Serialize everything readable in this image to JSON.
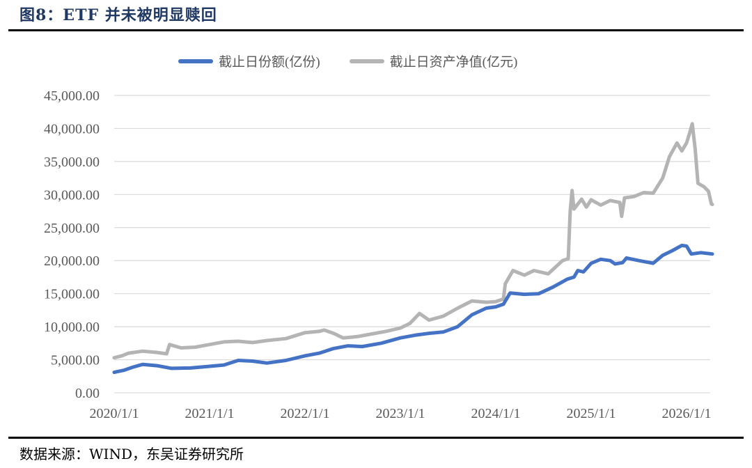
{
  "header": {
    "title": "图8：ETF 并未被明显赎回"
  },
  "footer": {
    "source": "数据来源：WIND，东吴证券研究所"
  },
  "legend": [
    {
      "label": "截止日份额(亿份)",
      "color": "#4472c4"
    },
    {
      "label": "截止日资产净值(亿元)",
      "color": "#b4b4b4"
    }
  ],
  "chart_data": {
    "type": "line",
    "title": "ETF 并未被明显赎回",
    "xlabel": "",
    "ylabel": "",
    "ylim": [
      0,
      45000
    ],
    "yticks": [
      "0.00",
      "5,000.00",
      "10,000.00",
      "15,000.00",
      "20,000.00",
      "25,000.00",
      "30,000.00",
      "35,000.00",
      "40,000.00",
      "45,000.00"
    ],
    "xticks": [
      "2020/1/1",
      "2021/1/1",
      "2022/1/1",
      "2023/1/1",
      "2024/1/1",
      "2025/1/1",
      "2026/1/1"
    ],
    "grid": true,
    "legend_position": "top",
    "series": [
      {
        "name": "截止日份额(亿份)",
        "color": "#4472c4",
        "points": [
          [
            2020.0,
            3100
          ],
          [
            2020.1,
            3400
          ],
          [
            2020.2,
            3900
          ],
          [
            2020.3,
            4300
          ],
          [
            2020.45,
            4100
          ],
          [
            2020.6,
            3700
          ],
          [
            2020.8,
            3750
          ],
          [
            2021.0,
            4000
          ],
          [
            2021.15,
            4200
          ],
          [
            2021.3,
            4900
          ],
          [
            2021.45,
            4800
          ],
          [
            2021.6,
            4500
          ],
          [
            2021.8,
            4900
          ],
          [
            2022.0,
            5600
          ],
          [
            2022.15,
            6000
          ],
          [
            2022.3,
            6700
          ],
          [
            2022.45,
            7100
          ],
          [
            2022.6,
            7000
          ],
          [
            2022.8,
            7500
          ],
          [
            2023.0,
            8300
          ],
          [
            2023.15,
            8700
          ],
          [
            2023.3,
            9000
          ],
          [
            2023.45,
            9200
          ],
          [
            2023.6,
            10000
          ],
          [
            2023.75,
            11800
          ],
          [
            2023.9,
            12800
          ],
          [
            2024.0,
            13000
          ],
          [
            2024.08,
            13400
          ],
          [
            2024.15,
            15100
          ],
          [
            2024.3,
            14900
          ],
          [
            2024.45,
            15000
          ],
          [
            2024.6,
            16000
          ],
          [
            2024.75,
            17200
          ],
          [
            2024.82,
            17500
          ],
          [
            2024.86,
            18500
          ],
          [
            2024.92,
            18300
          ],
          [
            2025.0,
            19600
          ],
          [
            2025.1,
            20200
          ],
          [
            2025.2,
            20000
          ],
          [
            2025.25,
            19500
          ],
          [
            2025.33,
            19700
          ],
          [
            2025.37,
            20400
          ],
          [
            2025.5,
            20000
          ],
          [
            2025.65,
            19600
          ],
          [
            2025.75,
            20800
          ],
          [
            2025.85,
            21500
          ],
          [
            2025.95,
            22300
          ],
          [
            2026.0,
            22200
          ],
          [
            2026.05,
            21000
          ],
          [
            2026.15,
            21200
          ],
          [
            2026.27,
            21000
          ]
        ]
      },
      {
        "name": "截止日资产净值(亿元)",
        "color": "#b4b4b4",
        "points": [
          [
            2020.0,
            5300
          ],
          [
            2020.08,
            5600
          ],
          [
            2020.15,
            6000
          ],
          [
            2020.3,
            6300
          ],
          [
            2020.45,
            6100
          ],
          [
            2020.55,
            5900
          ],
          [
            2020.58,
            7300
          ],
          [
            2020.7,
            6800
          ],
          [
            2020.85,
            6900
          ],
          [
            2021.0,
            7300
          ],
          [
            2021.15,
            7700
          ],
          [
            2021.3,
            7800
          ],
          [
            2021.45,
            7600
          ],
          [
            2021.6,
            7900
          ],
          [
            2021.8,
            8200
          ],
          [
            2022.0,
            9100
          ],
          [
            2022.15,
            9300
          ],
          [
            2022.2,
            9500
          ],
          [
            2022.3,
            9000
          ],
          [
            2022.4,
            8300
          ],
          [
            2022.55,
            8500
          ],
          [
            2022.7,
            8900
          ],
          [
            2022.85,
            9300
          ],
          [
            2023.0,
            9800
          ],
          [
            2023.1,
            10500
          ],
          [
            2023.2,
            12000
          ],
          [
            2023.3,
            11000
          ],
          [
            2023.45,
            11600
          ],
          [
            2023.6,
            12800
          ],
          [
            2023.75,
            13900
          ],
          [
            2023.9,
            13700
          ],
          [
            2024.0,
            13800
          ],
          [
            2024.08,
            14200
          ],
          [
            2024.1,
            16500
          ],
          [
            2024.18,
            18500
          ],
          [
            2024.3,
            17800
          ],
          [
            2024.4,
            18500
          ],
          [
            2024.55,
            18000
          ],
          [
            2024.7,
            20000
          ],
          [
            2024.76,
            20300
          ],
          [
            2024.78,
            27500
          ],
          [
            2024.8,
            30600
          ],
          [
            2024.82,
            27800
          ],
          [
            2024.9,
            29300
          ],
          [
            2024.95,
            28100
          ],
          [
            2025.0,
            29200
          ],
          [
            2025.1,
            28400
          ],
          [
            2025.2,
            29100
          ],
          [
            2025.3,
            28800
          ],
          [
            2025.32,
            26700
          ],
          [
            2025.35,
            29500
          ],
          [
            2025.45,
            29700
          ],
          [
            2025.55,
            30300
          ],
          [
            2025.65,
            30200
          ],
          [
            2025.75,
            32500
          ],
          [
            2025.82,
            35700
          ],
          [
            2025.9,
            37800
          ],
          [
            2025.95,
            36600
          ],
          [
            2026.0,
            37800
          ],
          [
            2026.03,
            39200
          ],
          [
            2026.06,
            40700
          ],
          [
            2026.09,
            37000
          ],
          [
            2026.12,
            31700
          ],
          [
            2026.18,
            31200
          ],
          [
            2026.23,
            30500
          ],
          [
            2026.26,
            28600
          ],
          [
            2026.27,
            28500
          ]
        ]
      }
    ]
  }
}
